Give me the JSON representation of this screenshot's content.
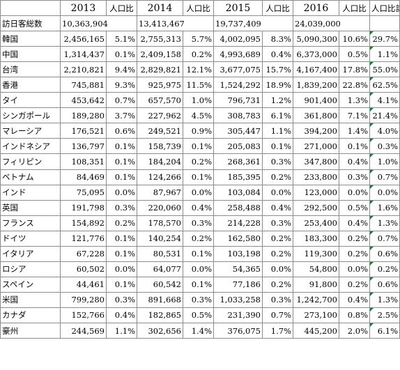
{
  "headers": [
    "",
    "2013",
    "人口比",
    "2014",
    "人口比",
    "2015",
    "人口比",
    "2016",
    "人口比",
    "人口比計"
  ],
  "total": {
    "label": "訪日客総数",
    "v2013": "10,363,904",
    "v2014": "13,413,467",
    "v2015": "19,737,409",
    "v2016": "24,039,000"
  },
  "rows": [
    {
      "name": "韓国",
      "v2013": "2,456,165",
      "r2013": "5.1%",
      "v2014": "2,755,313",
      "r2014": "5.7%",
      "v2015": "4,002,095",
      "r2015": "8.3%",
      "v2016": "5,090,300",
      "r2016": "10.6%",
      "total": "29.7%"
    },
    {
      "name": "中国",
      "v2013": "1,314,437",
      "r2013": "0.1%",
      "v2014": "2,409,158",
      "r2014": "0.2%",
      "v2015": "4,993,689",
      "r2015": "0.4%",
      "v2016": "6,373,000",
      "r2016": "0.5%",
      "total": "1.1%"
    },
    {
      "name": "台湾",
      "v2013": "2,210,821",
      "r2013": "9.4%",
      "v2014": "2,829,821",
      "r2014": "12.1%",
      "v2015": "3,677,075",
      "r2015": "15.7%",
      "v2016": "4,167,400",
      "r2016": "17.8%",
      "total": "55.0%"
    },
    {
      "name": "香港",
      "v2013": "745,881",
      "r2013": "9.3%",
      "v2014": "925,975",
      "r2014": "11.5%",
      "v2015": "1,524,292",
      "r2015": "18.9%",
      "v2016": "1,839,200",
      "r2016": "22.8%",
      "total": "62.5%"
    },
    {
      "name": "タイ",
      "v2013": "453,642",
      "r2013": "0.7%",
      "v2014": "657,570",
      "r2014": "1.0%",
      "v2015": "796,731",
      "r2015": "1.2%",
      "v2016": "901,400",
      "r2016": "1.3%",
      "total": "4.1%"
    },
    {
      "name": "シンガポール",
      "v2013": "189,280",
      "r2013": "3.7%",
      "v2014": "227,962",
      "r2014": "4.5%",
      "v2015": "308,783",
      "r2015": "6.1%",
      "v2016": "361,800",
      "r2016": "7.1%",
      "total": "21.4%"
    },
    {
      "name": "マレーシア",
      "v2013": "176,521",
      "r2013": "0.6%",
      "v2014": "249,521",
      "r2014": "0.9%",
      "v2015": "305,447",
      "r2015": "1.1%",
      "v2016": "394,200",
      "r2016": "1.4%",
      "total": "4.0%"
    },
    {
      "name": "インドネシア",
      "v2013": "136,797",
      "r2013": "0.1%",
      "v2014": "158,739",
      "r2014": "0.1%",
      "v2015": "205,083",
      "r2015": "0.1%",
      "v2016": "271,000",
      "r2016": "0.1%",
      "total": "0.3%"
    },
    {
      "name": "フィリピン",
      "v2013": "108,351",
      "r2013": "0.1%",
      "v2014": "184,204",
      "r2014": "0.2%",
      "v2015": "268,361",
      "r2015": "0.3%",
      "v2016": "347,800",
      "r2016": "0.4%",
      "total": "1.0%"
    },
    {
      "name": "ベトナム",
      "v2013": "84,469",
      "r2013": "0.1%",
      "v2014": "124,266",
      "r2014": "0.1%",
      "v2015": "185,395",
      "r2015": "0.2%",
      "v2016": "233,800",
      "r2016": "0.3%",
      "total": "0.7%"
    },
    {
      "name": "インド",
      "v2013": "75,095",
      "r2013": "0.0%",
      "v2014": "87,967",
      "r2014": "0.0%",
      "v2015": "103,084",
      "r2015": "0.0%",
      "v2016": "123,000",
      "r2016": "0.0%",
      "total": "0.0%"
    },
    {
      "name": "英国",
      "v2013": "191,798",
      "r2013": "0.3%",
      "v2014": "220,060",
      "r2014": "0.4%",
      "v2015": "258,488",
      "r2015": "0.4%",
      "v2016": "292,500",
      "r2016": "0.5%",
      "total": "1.6%"
    },
    {
      "name": "フランス",
      "v2013": "154,892",
      "r2013": "0.2%",
      "v2014": "178,570",
      "r2014": "0.3%",
      "v2015": "214,228",
      "r2015": "0.3%",
      "v2016": "253,400",
      "r2016": "0.4%",
      "total": "1.3%"
    },
    {
      "name": "ドイツ",
      "v2013": "121,776",
      "r2013": "0.1%",
      "v2014": "140,254",
      "r2014": "0.2%",
      "v2015": "162,580",
      "r2015": "0.2%",
      "v2016": "183,300",
      "r2016": "0.2%",
      "total": "0.7%"
    },
    {
      "name": "イタリア",
      "v2013": "67,228",
      "r2013": "0.1%",
      "v2014": "80,531",
      "r2014": "0.1%",
      "v2015": "103,198",
      "r2015": "0.2%",
      "v2016": "119,300",
      "r2016": "0.2%",
      "total": "0.6%"
    },
    {
      "name": "ロシア",
      "v2013": "60,502",
      "r2013": "0.0%",
      "v2014": "64,077",
      "r2014": "0.0%",
      "v2015": "54,365",
      "r2015": "0.0%",
      "v2016": "54,800",
      "r2016": "0.0%",
      "total": "0.2%"
    },
    {
      "name": "スペイン",
      "v2013": "44,461",
      "r2013": "0.1%",
      "v2014": "60,542",
      "r2014": "0.1%",
      "v2015": "77,186",
      "r2015": "0.2%",
      "v2016": "91,800",
      "r2016": "0.2%",
      "total": "0.6%"
    },
    {
      "name": "米国",
      "v2013": "799,280",
      "r2013": "0.3%",
      "v2014": "891,668",
      "r2014": "0.3%",
      "v2015": "1,033,258",
      "r2015": "0.3%",
      "v2016": "1,242,700",
      "r2016": "0.4%",
      "total": "1.3%"
    },
    {
      "name": "カナダ",
      "v2013": "152,766",
      "r2013": "0.4%",
      "v2014": "182,865",
      "r2014": "0.5%",
      "v2015": "231,390",
      "r2015": "0.7%",
      "v2016": "273,100",
      "r2016": "0.8%",
      "total": "2.5%"
    },
    {
      "name": "豪州",
      "v2013": "244,569",
      "r2013": "1.1%",
      "v2014": "302,656",
      "r2014": "1.4%",
      "v2015": "376,075",
      "r2015": "1.7%",
      "v2016": "445,200",
      "r2016": "2.0%",
      "total": "6.1%"
    }
  ],
  "colors": {
    "grid": "#8c8c8c",
    "formula_flag": "#1e7a3a"
  }
}
